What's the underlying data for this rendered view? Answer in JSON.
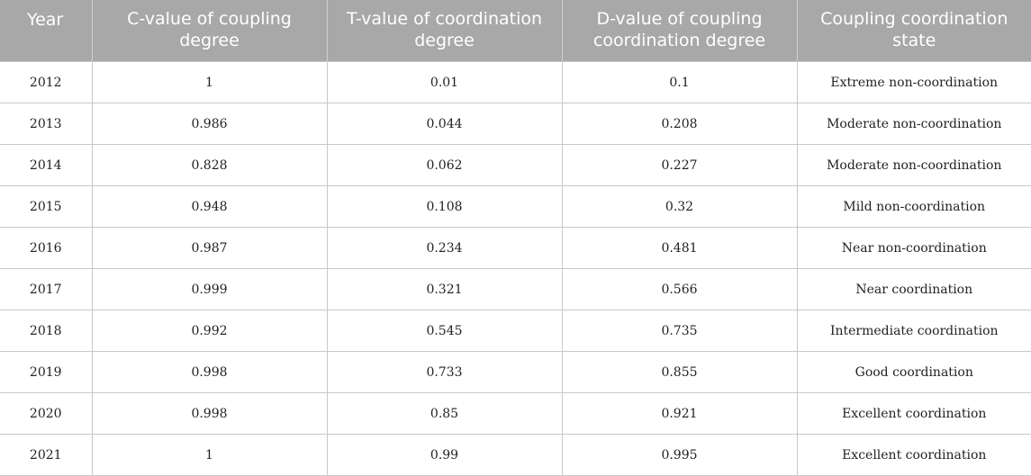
{
  "table": {
    "headers": [
      "Year",
      "C-value of coupling degree",
      "T-value of coordination degree",
      "D-value of coupling coordination degree",
      "Coupling coordination state"
    ],
    "rows": [
      [
        "2012",
        "1",
        "0.01",
        "0.1",
        "Extreme non-coordination"
      ],
      [
        "2013",
        "0.986",
        "0.044",
        "0.208",
        "Moderate non-coordination"
      ],
      [
        "2014",
        "0.828",
        "0.062",
        "0.227",
        "Moderate non-coordination"
      ],
      [
        "2015",
        "0.948",
        "0.108",
        "0.32",
        "Mild non-coordination"
      ],
      [
        "2016",
        "0.987",
        "0.234",
        "0.481",
        "Near non-coordination"
      ],
      [
        "2017",
        "0.999",
        "0.321",
        "0.566",
        "Near coordination"
      ],
      [
        "2018",
        "0.992",
        "0.545",
        "0.735",
        "Intermediate coordination"
      ],
      [
        "2019",
        "0.998",
        "0.733",
        "0.855",
        "Good coordination"
      ],
      [
        "2020",
        "0.998",
        "0.85",
        "0.921",
        "Excellent coordination"
      ],
      [
        "2021",
        "1",
        "0.99",
        "0.995",
        "Excellent coordination"
      ]
    ]
  },
  "colors": {
    "header_bg": "#a9a8a8",
    "header_text": "#ffffff",
    "grid": "#c8c8c8"
  }
}
